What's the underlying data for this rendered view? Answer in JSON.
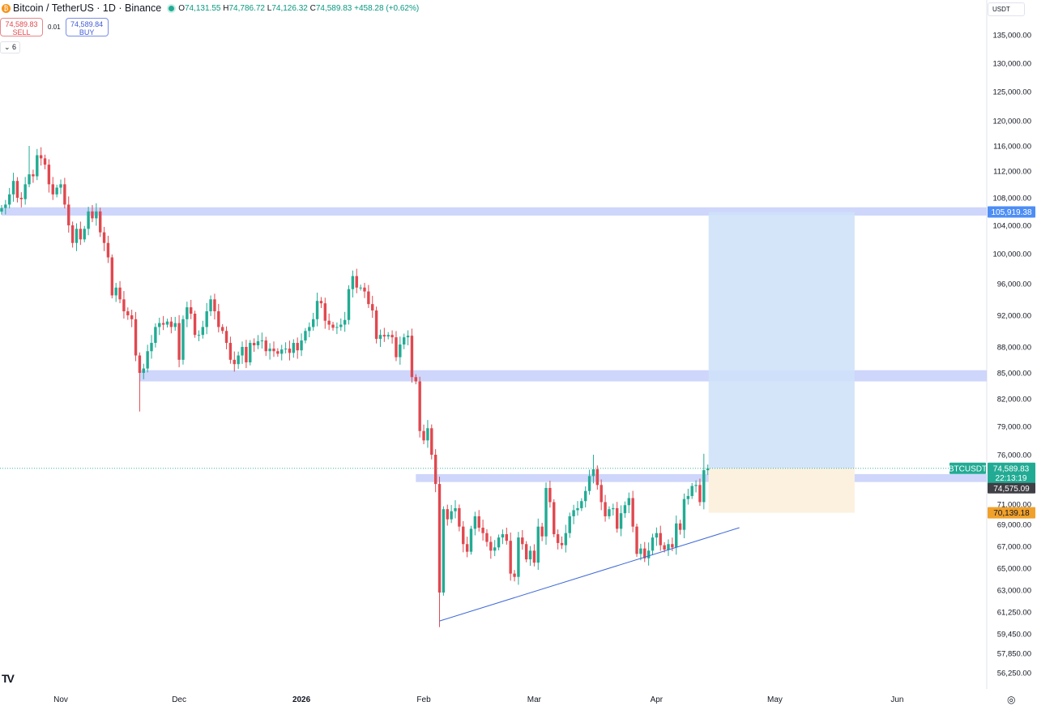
{
  "header": {
    "symbol": "Bitcoin / TetherUS · 1D · Binance",
    "coin_icon": "bitcoin-icon",
    "o_label": "O",
    "o": "74,131.55",
    "h_label": "H",
    "h": "74,786.72",
    "l_label": "L",
    "l": "74,126.32",
    "c_label": "C",
    "c": "74,589.83",
    "change": "+458.28 (+0.62%)"
  },
  "trade": {
    "sell_price": "74,589.83",
    "sell_label": "SELL",
    "spread": "0.01",
    "buy_price": "74,589.84",
    "buy_label": "BUY"
  },
  "indicators": {
    "toggle": "⌄ 6"
  },
  "currency": "USDT",
  "colors": {
    "up": "#22ab94",
    "down": "#e0484f",
    "zone": "#c5cffa",
    "target": "#cfe2f9",
    "stop": "#fcf1df",
    "trend": "#3d68d8",
    "price_tag": "#22ab94",
    "stop_tag": "#f0a12b",
    "target_tag": "#4d8ef5"
  },
  "chart_data": {
    "type": "candlestick",
    "title": "Bitcoin / TetherUS · 1D · Binance",
    "y_scale": "log",
    "y_ticks": [
      135000,
      130000,
      125000,
      120000,
      116000,
      112000,
      108000,
      104000,
      100000,
      96000,
      92000,
      88000,
      85000,
      82000,
      79000,
      76000,
      71000,
      69000,
      67000,
      65000,
      63000,
      61250,
      59450,
      57850,
      56250
    ],
    "y_tick_labels": [
      "135,000.00",
      "130,000.00",
      "125,000.00",
      "120,000.00",
      "116,000.00",
      "112,000.00",
      "108,000.00",
      "104,000.00",
      "100,000.00",
      "96,000.00",
      "92,000.00",
      "88,000.00",
      "85,000.00",
      "82,000.00",
      "79,000.00",
      "76,000.00",
      "71,000.00",
      "69,000.00",
      "67,000.00",
      "65,000.00",
      "63,000.00",
      "61,250.00",
      "59,450.00",
      "57,850.00",
      "56,250.00"
    ],
    "x_labels": [
      {
        "text": "Nov",
        "day": 15
      },
      {
        "text": "Dec",
        "day": 45
      },
      {
        "text": "2026",
        "day": 76,
        "bold": true
      },
      {
        "text": "Feb",
        "day": 107
      },
      {
        "text": "Mar",
        "day": 135
      },
      {
        "text": "Apr",
        "day": 166
      },
      {
        "text": "May",
        "day": 196
      },
      {
        "text": "Jun",
        "day": 227
      }
    ],
    "start_date": "Oct 17",
    "closes_k": [
      106.5,
      107,
      108.5,
      110.5,
      108,
      107.8,
      110,
      111.5,
      111.2,
      114.5,
      114,
      113,
      110,
      108.5,
      109.5,
      110,
      107,
      104,
      101.5,
      103.5,
      102,
      103.5,
      106,
      105,
      106,
      103,
      101.5,
      99.5,
      94.5,
      95.5,
      94,
      92.5,
      92,
      91.5,
      87,
      85,
      85.5,
      87.5,
      88.5,
      90.5,
      91,
      90.8,
      91.2,
      90.5,
      91,
      86.5,
      91.5,
      93,
      92.2,
      89.5,
      89.5,
      90.5,
      92.5,
      94,
      92.5,
      90.5,
      90,
      88.5,
      86.5,
      86,
      87,
      88,
      86.2,
      88.5,
      88.2,
      88.7,
      88.8,
      87.5,
      87.8,
      87.5,
      87.2,
      87.7,
      87.8,
      87.3,
      88.5,
      87.6,
      88.8,
      90,
      90.5,
      91.5,
      93.8,
      93.5,
      91.3,
      90.8,
      90.4,
      90.5,
      90.8,
      91.4,
      95.3,
      97,
      95.5,
      95.5,
      95,
      93.4,
      92.6,
      89,
      89.5,
      89.3,
      89.5,
      89.2,
      86.8,
      88.3,
      89.2,
      89.4,
      84.5,
      84,
      78.5,
      77.5,
      78.8,
      76,
      73,
      62.8,
      70.5,
      69.5,
      70.3,
      70.6,
      68.8,
      67.2,
      66.5,
      68.6,
      69.8,
      68.7,
      68.2,
      67.4,
      66.6,
      66.9,
      67.8,
      68.1,
      67.5,
      64.5,
      64.2,
      67.8,
      67.2,
      65.8,
      66.6,
      65.5,
      68.8,
      67.9,
      72.6,
      71.2,
      68.1,
      67.3,
      67.1,
      68.2,
      69.8,
      70.4,
      70.6,
      71.3,
      72.3,
      73.8,
      74.5,
      72.9,
      71.2,
      69.8,
      70.5,
      70.6,
      68.6,
      70.1,
      70.9,
      71.6,
      68.8,
      66.3,
      66.8,
      65.9,
      66.6,
      67.8,
      68.2,
      67.1,
      66.7,
      67.2,
      66.9,
      69.1,
      68.5,
      71.5,
      71.8,
      72.8,
      72.9,
      71.2,
      74.4,
      74.59
    ],
    "extreme_wicks": [
      {
        "day": 7,
        "high": 116000
      },
      {
        "day": 35,
        "low": 80600
      },
      {
        "day": 111,
        "low": 60000
      },
      {
        "day": 150,
        "high": 76000
      },
      {
        "day": 178,
        "high": 76100
      }
    ],
    "zones": [
      {
        "price_low": 105400,
        "price_high": 106600,
        "start_day": 0
      },
      {
        "price_low": 84000,
        "price_high": 85300,
        "start_day": 35
      },
      {
        "price_low": 73200,
        "price_high": 74000,
        "start_day": 105
      }
    ],
    "trendline": {
      "from": {
        "day": 111,
        "price": 60500
      },
      "to": {
        "day": 187,
        "price": 68700
      }
    },
    "long_position": {
      "entry": 74589.83,
      "target": 105919.38,
      "stop": 70139.18,
      "start_day": 179,
      "end_day": 216
    },
    "price_tags": {
      "symbol": "BTCUSDT",
      "last": "74,589.83",
      "countdown": "22:13:19",
      "zone": "74,575.09",
      "target": "105,919.38",
      "stop": "70,139.18"
    }
  }
}
